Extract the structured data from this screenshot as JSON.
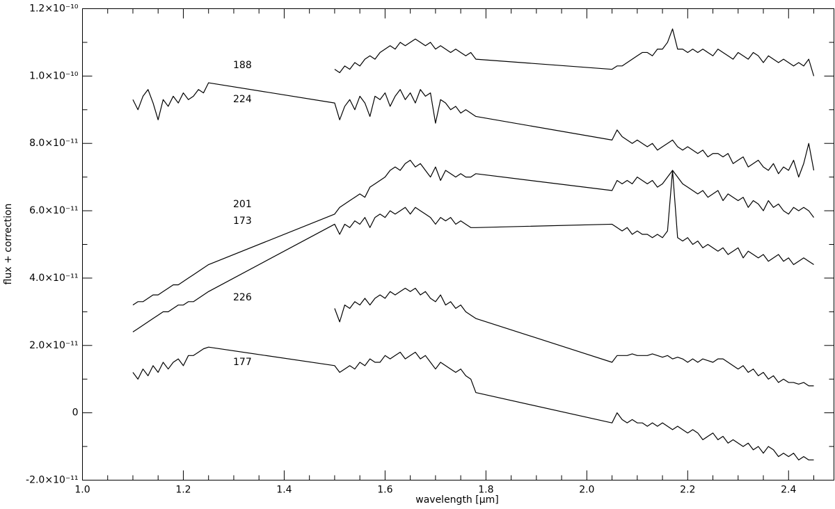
{
  "chart_data": {
    "type": "line",
    "xlabel": "wavelength [μm]",
    "ylabel": "flux + correction",
    "xlim": [
      1.0,
      2.49
    ],
    "ylim": [
      -2e-11,
      1.2e-10
    ],
    "xticks": [
      {
        "value": 1.0,
        "label": "1.0"
      },
      1.2,
      1.4,
      1.6,
      1.8,
      {
        "value": 2.0,
        "label": "2.0"
      },
      2.2,
      2.4
    ],
    "xticks_minor": [
      1.05,
      1.1,
      1.15,
      1.25,
      1.3,
      1.35,
      1.45,
      1.5,
      1.55,
      1.65,
      1.7,
      1.75,
      1.85,
      1.9,
      1.95,
      2.05,
      2.1,
      2.15,
      2.25,
      2.3,
      2.35,
      2.45
    ],
    "yticks": [
      {
        "value": -2e-11,
        "label": "-2.0×10⁻¹¹"
      },
      0,
      {
        "value": 2e-11,
        "label": "2.0×10⁻¹¹"
      },
      {
        "value": 4e-11,
        "label": "4.0×10⁻¹¹"
      },
      {
        "value": 6e-11,
        "label": "6.0×10⁻¹¹"
      },
      {
        "value": 8e-11,
        "label": "8.0×10⁻¹¹"
      },
      {
        "value": 1e-10,
        "label": "1.0×10⁻¹⁰"
      },
      {
        "value": 1.2e-10,
        "label": "1.2×10⁻¹⁰"
      }
    ],
    "yticks_minor": [
      -1e-11,
      1e-11,
      3e-11,
      5e-11,
      7e-11,
      9e-11,
      1.1e-10
    ],
    "x": [
      1.1,
      1.11,
      1.12,
      1.13,
      1.14,
      1.15,
      1.16,
      1.17,
      1.18,
      1.19,
      1.2,
      1.21,
      1.22,
      1.23,
      1.24,
      1.25,
      1.5,
      1.51,
      1.52,
      1.53,
      1.54,
      1.55,
      1.56,
      1.57,
      1.58,
      1.59,
      1.6,
      1.61,
      1.62,
      1.63,
      1.64,
      1.65,
      1.66,
      1.67,
      1.68,
      1.69,
      1.7,
      1.71,
      1.72,
      1.73,
      1.74,
      1.75,
      1.76,
      1.77,
      1.78,
      2.05,
      2.06,
      2.07,
      2.08,
      2.09,
      2.1,
      2.11,
      2.12,
      2.13,
      2.14,
      2.15,
      2.16,
      2.17,
      2.18,
      2.19,
      2.2,
      2.21,
      2.22,
      2.23,
      2.24,
      2.25,
      2.26,
      2.27,
      2.28,
      2.29,
      2.3,
      2.31,
      2.32,
      2.33,
      2.34,
      2.35,
      2.36,
      2.37,
      2.38,
      2.39,
      2.4,
      2.41,
      2.42,
      2.43,
      2.44,
      2.45
    ],
    "series": [
      {
        "name": "188",
        "color": "#000000",
        "values": [
          null,
          null,
          null,
          null,
          null,
          null,
          null,
          null,
          null,
          null,
          null,
          null,
          null,
          null,
          null,
          null,
          1.02e-10,
          1.01e-10,
          1.03e-10,
          1.02e-10,
          1.04e-10,
          1.03e-10,
          1.05e-10,
          1.06e-10,
          1.05e-10,
          1.07e-10,
          1.08e-10,
          1.09e-10,
          1.08e-10,
          1.1e-10,
          1.09e-10,
          1.1e-10,
          1.11e-10,
          1.1e-10,
          1.09e-10,
          1.1e-10,
          1.08e-10,
          1.09e-10,
          1.08e-10,
          1.07e-10,
          1.08e-10,
          1.07e-10,
          1.06e-10,
          1.07e-10,
          1.05e-10,
          1.02e-10,
          1.03e-10,
          1.03e-10,
          1.04e-10,
          1.05e-10,
          1.06e-10,
          1.07e-10,
          1.07e-10,
          1.06e-10,
          1.08e-10,
          1.08e-10,
          1.1e-10,
          1.14e-10,
          1.08e-10,
          1.08e-10,
          1.07e-10,
          1.08e-10,
          1.07e-10,
          1.08e-10,
          1.07e-10,
          1.06e-10,
          1.08e-10,
          1.07e-10,
          1.06e-10,
          1.05e-10,
          1.07e-10,
          1.06e-10,
          1.05e-10,
          1.07e-10,
          1.06e-10,
          1.04e-10,
          1.06e-10,
          1.05e-10,
          1.04e-10,
          1.05e-10,
          1.04e-10,
          1.03e-10,
          1.04e-10,
          1.03e-10,
          1.05e-10,
          1e-10
        ]
      },
      {
        "name": "224",
        "color": "#000000",
        "values": [
          9.3e-11,
          9e-11,
          9.4e-11,
          9.6e-11,
          9.2e-11,
          8.7e-11,
          9.3e-11,
          9.1e-11,
          9.4e-11,
          9.2e-11,
          9.5e-11,
          9.3e-11,
          9.4e-11,
          9.6e-11,
          9.5e-11,
          9.8e-11,
          9.2e-11,
          8.7e-11,
          9.1e-11,
          9.3e-11,
          9e-11,
          9.4e-11,
          9.2e-11,
          8.8e-11,
          9.4e-11,
          9.3e-11,
          9.5e-11,
          9.1e-11,
          9.4e-11,
          9.6e-11,
          9.3e-11,
          9.5e-11,
          9.2e-11,
          9.6e-11,
          9.4e-11,
          9.5e-11,
          8.6e-11,
          9.3e-11,
          9.2e-11,
          9e-11,
          9.1e-11,
          8.9e-11,
          9e-11,
          8.9e-11,
          8.8e-11,
          8.1e-11,
          8.4e-11,
          8.2e-11,
          8.1e-11,
          8e-11,
          8.1e-11,
          8e-11,
          7.9e-11,
          8e-11,
          7.8e-11,
          7.9e-11,
          8e-11,
          8.1e-11,
          7.9e-11,
          7.8e-11,
          7.9e-11,
          7.8e-11,
          7.7e-11,
          7.8e-11,
          7.6e-11,
          7.7e-11,
          7.7e-11,
          7.6e-11,
          7.7e-11,
          7.4e-11,
          7.5e-11,
          7.6e-11,
          7.3e-11,
          7.4e-11,
          7.5e-11,
          7.3e-11,
          7.2e-11,
          7.4e-11,
          7.1e-11,
          7.3e-11,
          7.2e-11,
          7.5e-11,
          7e-11,
          7.4e-11,
          8e-11,
          7.2e-11
        ]
      },
      {
        "name": "201",
        "color": "#000000",
        "values": [
          3.2e-11,
          3.3e-11,
          3.3e-11,
          3.4e-11,
          3.5e-11,
          3.5e-11,
          3.6e-11,
          3.7e-11,
          3.8e-11,
          3.8e-11,
          3.9e-11,
          4e-11,
          4.1e-11,
          4.2e-11,
          4.3e-11,
          4.4e-11,
          5.9e-11,
          6.1e-11,
          6.2e-11,
          6.3e-11,
          6.4e-11,
          6.5e-11,
          6.4e-11,
          6.7e-11,
          6.8e-11,
          6.9e-11,
          7e-11,
          7.2e-11,
          7.3e-11,
          7.2e-11,
          7.4e-11,
          7.5e-11,
          7.3e-11,
          7.4e-11,
          7.2e-11,
          7e-11,
          7.3e-11,
          6.9e-11,
          7.2e-11,
          7.1e-11,
          7e-11,
          7.1e-11,
          7e-11,
          7e-11,
          7.1e-11,
          6.6e-11,
          6.9e-11,
          6.8e-11,
          6.9e-11,
          6.8e-11,
          7e-11,
          6.9e-11,
          6.8e-11,
          6.9e-11,
          6.7e-11,
          6.8e-11,
          7e-11,
          7.2e-11,
          7e-11,
          6.8e-11,
          6.7e-11,
          6.6e-11,
          6.5e-11,
          6.6e-11,
          6.4e-11,
          6.5e-11,
          6.6e-11,
          6.3e-11,
          6.5e-11,
          6.4e-11,
          6.3e-11,
          6.4e-11,
          6.1e-11,
          6.3e-11,
          6.2e-11,
          6e-11,
          6.3e-11,
          6.1e-11,
          6.2e-11,
          6e-11,
          5.9e-11,
          6.1e-11,
          6e-11,
          6.1e-11,
          6e-11,
          5.8e-11
        ]
      },
      {
        "name": "173",
        "color": "#000000",
        "values": [
          2.4e-11,
          2.5e-11,
          2.6e-11,
          2.7e-11,
          2.8e-11,
          2.9e-11,
          3e-11,
          3e-11,
          3.1e-11,
          3.2e-11,
          3.2e-11,
          3.3e-11,
          3.3e-11,
          3.4e-11,
          3.5e-11,
          3.6e-11,
          5.6e-11,
          5.3e-11,
          5.6e-11,
          5.5e-11,
          5.7e-11,
          5.6e-11,
          5.8e-11,
          5.5e-11,
          5.8e-11,
          5.9e-11,
          5.8e-11,
          6e-11,
          5.9e-11,
          6e-11,
          6.1e-11,
          5.9e-11,
          6.1e-11,
          6e-11,
          5.9e-11,
          5.8e-11,
          5.6e-11,
          5.8e-11,
          5.7e-11,
          5.8e-11,
          5.6e-11,
          5.7e-11,
          5.6e-11,
          5.5e-11,
          5.5e-11,
          5.6e-11,
          5.5e-11,
          5.4e-11,
          5.5e-11,
          5.3e-11,
          5.4e-11,
          5.3e-11,
          5.3e-11,
          5.2e-11,
          5.3e-11,
          5.2e-11,
          5.4e-11,
          7.2e-11,
          5.2e-11,
          5.1e-11,
          5.2e-11,
          5e-11,
          5.1e-11,
          4.9e-11,
          5e-11,
          4.9e-11,
          4.8e-11,
          4.9e-11,
          4.7e-11,
          4.8e-11,
          4.9e-11,
          4.6e-11,
          4.8e-11,
          4.7e-11,
          4.6e-11,
          4.7e-11,
          4.5e-11,
          4.6e-11,
          4.7e-11,
          4.5e-11,
          4.6e-11,
          4.4e-11,
          4.5e-11,
          4.6e-11,
          4.5e-11,
          4.4e-11
        ]
      },
      {
        "name": "226",
        "color": "#000000",
        "values": [
          null,
          null,
          null,
          null,
          null,
          null,
          null,
          null,
          null,
          null,
          null,
          null,
          null,
          null,
          null,
          null,
          3.1e-11,
          2.7e-11,
          3.2e-11,
          3.1e-11,
          3.3e-11,
          3.2e-11,
          3.4e-11,
          3.2e-11,
          3.4e-11,
          3.5e-11,
          3.4e-11,
          3.6e-11,
          3.5e-11,
          3.6e-11,
          3.7e-11,
          3.6e-11,
          3.7e-11,
          3.5e-11,
          3.6e-11,
          3.4e-11,
          3.3e-11,
          3.5e-11,
          3.2e-11,
          3.3e-11,
          3.1e-11,
          3.2e-11,
          3e-11,
          2.9e-11,
          2.8e-11,
          1.5e-11,
          1.7e-11,
          1.7e-11,
          1.7e-11,
          1.75e-11,
          1.7e-11,
          1.7e-11,
          1.7e-11,
          1.75e-11,
          1.7e-11,
          1.65e-11,
          1.7e-11,
          1.6e-11,
          1.65e-11,
          1.6e-11,
          1.5e-11,
          1.6e-11,
          1.5e-11,
          1.6e-11,
          1.55e-11,
          1.5e-11,
          1.6e-11,
          1.6e-11,
          1.5e-11,
          1.4e-11,
          1.3e-11,
          1.4e-11,
          1.2e-11,
          1.3e-11,
          1.1e-11,
          1.2e-11,
          1e-11,
          1.1e-11,
          9e-12,
          1e-11,
          9e-12,
          9e-12,
          8.5e-12,
          9e-12,
          8e-12,
          8e-12
        ]
      },
      {
        "name": "177",
        "color": "#000000",
        "values": [
          1.2e-11,
          1e-11,
          1.3e-11,
          1.1e-11,
          1.4e-11,
          1.2e-11,
          1.5e-11,
          1.3e-11,
          1.5e-11,
          1.6e-11,
          1.4e-11,
          1.7e-11,
          1.7e-11,
          1.8e-11,
          1.9e-11,
          1.95e-11,
          1.4e-11,
          1.2e-11,
          1.3e-11,
          1.4e-11,
          1.3e-11,
          1.5e-11,
          1.4e-11,
          1.6e-11,
          1.5e-11,
          1.5e-11,
          1.7e-11,
          1.6e-11,
          1.7e-11,
          1.8e-11,
          1.6e-11,
          1.7e-11,
          1.8e-11,
          1.6e-11,
          1.7e-11,
          1.5e-11,
          1.3e-11,
          1.5e-11,
          1.4e-11,
          1.3e-11,
          1.2e-11,
          1.3e-11,
          1.1e-11,
          1e-11,
          6e-12,
          -3e-12,
          0.0,
          -2e-12,
          -3e-12,
          -2e-12,
          -3e-12,
          -3e-12,
          -4e-12,
          -3e-12,
          -4e-12,
          -3e-12,
          -4e-12,
          -5e-12,
          -4e-12,
          -5e-12,
          -6e-12,
          -5e-12,
          -6e-12,
          -8e-12,
          -7e-12,
          -6e-12,
          -8e-12,
          -7e-12,
          -9e-12,
          -8e-12,
          -9e-12,
          -1e-11,
          -9e-12,
          -1.1e-11,
          -1e-11,
          -1.2e-11,
          -1e-11,
          -1.1e-11,
          -1.3e-11,
          -1.2e-11,
          -1.3e-11,
          -1.2e-11,
          -1.4e-11,
          -1.3e-11,
          -1.4e-11,
          -1.4e-11
        ]
      }
    ]
  }
}
